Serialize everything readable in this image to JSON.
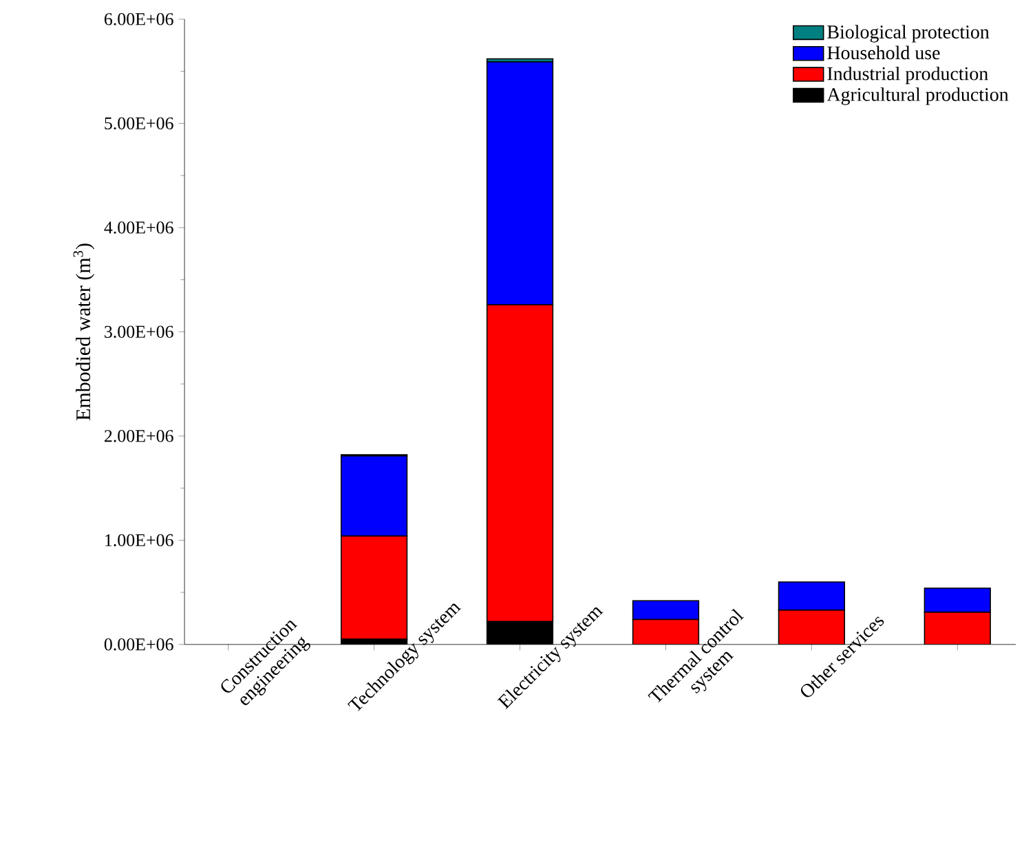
{
  "chart_data": {
    "type": "bar",
    "stacked": true,
    "ylabel": "Embodied water (m$^{3}$)",
    "categories": [
      "Construction engineering",
      "Technology system",
      "Electricity system",
      "Thermal control system",
      "Other services",
      null
    ],
    "series": [
      {
        "name": "Agricultural production",
        "color": "#000000",
        "values": [
          0,
          50000,
          220000,
          null,
          null,
          null
        ]
      },
      {
        "name": "Industrial production",
        "color": "#ff0000",
        "values": [
          0,
          990000,
          3040000,
          240000,
          330000,
          310000
        ]
      },
      {
        "name": "Household use",
        "color": "#0000ff",
        "values": [
          0,
          770000,
          2330000,
          180000,
          270000,
          230000
        ]
      },
      {
        "name": "Biological protection",
        "color": "#008080",
        "values": [
          0,
          10000,
          30000,
          0,
          0,
          0
        ]
      }
    ],
    "ylim": [
      0,
      6000000
    ],
    "yticks": [
      {
        "value": 0,
        "label": "0.00E+06"
      },
      {
        "value": 1000000,
        "label": "1.00E+06"
      },
      {
        "value": 2000000,
        "label": "2.00E+06"
      },
      {
        "value": 3000000,
        "label": "3.00E+06"
      },
      {
        "value": 4000000,
        "label": "4.00E+06"
      },
      {
        "value": 5000000,
        "label": "5.00E+06"
      },
      {
        "value": 6000000,
        "label": "6.00E+06"
      }
    ],
    "legend": "top right",
    "grid": false
  }
}
